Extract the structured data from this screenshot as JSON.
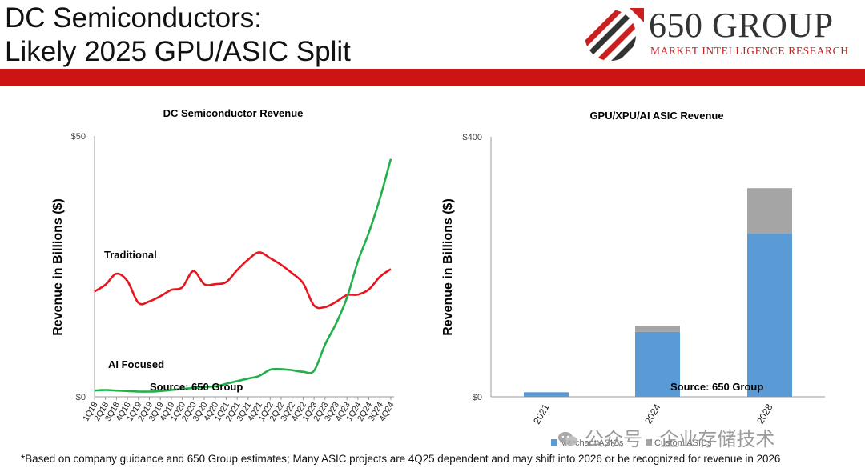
{
  "slide": {
    "title_line1": "DC Semiconductors:",
    "title_line2": "Likely 2025 GPU/ASIC Split",
    "footnote": "*Based on company guidance and 650 Group estimates; Many ASIC projects are 4Q25 dependent and may shift into 2026 or be recognized for revenue in 2026"
  },
  "logo": {
    "name": "650 GROUP",
    "subtitle": "MARKET INTELLIGENCE RESEARCH",
    "icon": "diagonal-stripes-arrow-logo",
    "colors": {
      "red": "#cc1f1f",
      "gray": "#333333"
    }
  },
  "watermark": {
    "text": "公众号 · 企业存储技术",
    "icon": "wechat-icon"
  },
  "colors": {
    "band": "#cc1414",
    "traditional": "#e8141e",
    "ai": "#22b04b",
    "merchant": "#5b9bd5",
    "custom": "#a5a5a5"
  },
  "chart_data": [
    {
      "type": "line",
      "title": "DC Semiconductor Revenue",
      "ylabel": "Revenue in Billions ($)",
      "y_tick_labels": [
        "$50",
        "$0"
      ],
      "ylim": [
        0,
        50
      ],
      "source": "Source: 650 Group",
      "categories": [
        "1Q18",
        "2Q18",
        "3Q18",
        "4Q18",
        "1Q19",
        "2Q19",
        "3Q19",
        "4Q19",
        "1Q20",
        "2Q20",
        "3Q20",
        "4Q20",
        "1Q21",
        "2Q21",
        "3Q21",
        "4Q21",
        "1Q22",
        "2Q22",
        "3Q22",
        "4Q22",
        "1Q23",
        "2Q23",
        "3Q23",
        "4Q23",
        "1Q24",
        "2Q24",
        "3Q24",
        "4Q24"
      ],
      "series": [
        {
          "name": "Traditional",
          "values": [
            20.2,
            21.5,
            23.6,
            22.2,
            18.0,
            18.3,
            19.3,
            20.5,
            21.0,
            24.1,
            21.6,
            21.6,
            22.0,
            24.3,
            26.3,
            27.7,
            26.6,
            25.3,
            23.7,
            21.8,
            17.5,
            17.2,
            18.2,
            19.5,
            19.6,
            20.6,
            23.0,
            24.5
          ]
        },
        {
          "name": "AI Focused",
          "values": [
            1.2,
            1.3,
            1.2,
            1.1,
            1.0,
            1.0,
            1.1,
            1.3,
            1.5,
            1.7,
            1.9,
            2.0,
            2.5,
            3.0,
            3.5,
            4.0,
            5.2,
            5.3,
            5.1,
            4.8,
            5.0,
            10.0,
            14.0,
            19.0,
            26.0,
            31.5,
            38.0,
            45.6
          ]
        }
      ],
      "x_tick_labels": [
        "1Q18",
        "2Q18",
        "3Q18",
        "4Q18",
        "1Q19",
        "2Q19",
        "3Q19",
        "4Q19",
        "1Q20",
        "2Q20",
        "3Q20",
        "4Q20",
        "1Q21",
        "2Q21",
        "3Q21",
        "4Q21",
        "1Q22",
        "2Q22",
        "3Q22",
        "4Q22",
        "1Q23",
        "2Q23",
        "3Q23",
        "4Q23",
        "1Q24",
        "2Q24",
        "3Q24",
        "4Q24"
      ]
    },
    {
      "type": "bar",
      "stacked": true,
      "title": "GPU/XPU/AI ASIC Revenue",
      "ylabel": "Revenue in Billions ($)",
      "y_tick_labels": [
        "$400",
        "$0"
      ],
      "ylim": [
        0,
        400
      ],
      "source": "Source: 650 Group",
      "categories": [
        "2021",
        "2024",
        "2028"
      ],
      "series": [
        {
          "name": "Merchant ASICs",
          "values": [
            7,
            100,
            251
          ]
        },
        {
          "name": "Custom ASICs",
          "values": [
            0,
            9,
            70
          ]
        }
      ],
      "legend": "bottom"
    }
  ]
}
